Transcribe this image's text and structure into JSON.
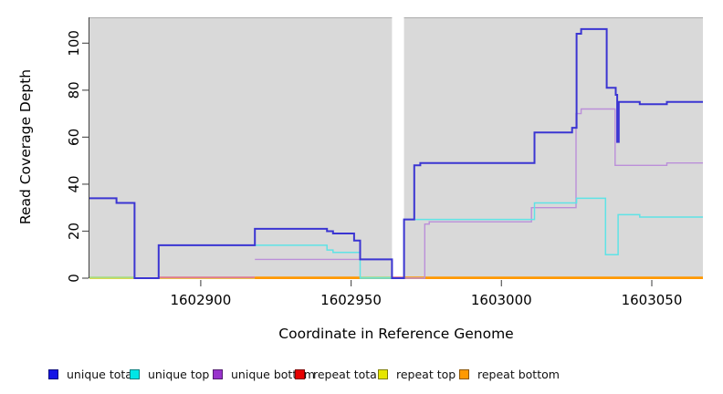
{
  "axes": {
    "x_label": "Coordinate in Reference Genome",
    "y_label": "Read Coverage Depth"
  },
  "legend": {
    "position": "bottom",
    "items": [
      {
        "label": "unique total",
        "color": "#1414e6"
      },
      {
        "label": "unique top",
        "color": "#00e6e6"
      },
      {
        "label": "unique bottom",
        "color": "#9933cc"
      },
      {
        "label": "repeat total",
        "color": "#e60000"
      },
      {
        "label": "repeat top",
        "color": "#e6e600"
      },
      {
        "label": "repeat bottom",
        "color": "#ff9900"
      }
    ]
  },
  "chart_data": {
    "type": "line",
    "step": true,
    "title": "",
    "xlabel": "Coordinate in Reference Genome",
    "ylabel": "Read Coverage Depth",
    "xlim": [
      1602863,
      1603067
    ],
    "ylim": [
      0,
      111
    ],
    "xticks": [
      "1602900",
      "1602950",
      "1603000",
      "1603050"
    ],
    "xtick_values": [
      1602900,
      1602950,
      1603000,
      1603050
    ],
    "yticks": [
      "0",
      "20",
      "40",
      "60",
      "80",
      "100"
    ],
    "ytick_values": [
      0,
      20,
      40,
      60,
      80,
      100
    ],
    "grid": false,
    "panel_color": "#d9d9d9",
    "panels": [
      {
        "from": 1602863,
        "to": 1602963.6
      },
      {
        "from": 1602967.6,
        "to": 1603067
      }
    ],
    "baseline_segments": [
      {
        "from": 1602863,
        "to": 1602878,
        "color": "#a8db82"
      },
      {
        "from": 1602886,
        "to": 1602918,
        "color": "#e07a8c"
      },
      {
        "from": 1602918,
        "to": 1602953,
        "color": "#ff9800"
      },
      {
        "from": 1602953,
        "to": 1602963.6,
        "color": "#a8db82"
      },
      {
        "from": 1602963.6,
        "to": 1602967.6,
        "color": "#e07a8c"
      },
      {
        "from": 1602967.6,
        "to": 1603067,
        "color": "#ff9800"
      }
    ],
    "series": [
      {
        "name": "repeat total",
        "color": "#e07a8c",
        "width": 1.6,
        "points": [
          [
            1602863,
            0
          ],
          [
            1603067,
            0
          ]
        ]
      },
      {
        "name": "repeat top",
        "color": "#e6e600",
        "width": 1.4,
        "points": [
          [
            1602863,
            0
          ],
          [
            1603067,
            0
          ]
        ]
      },
      {
        "name": "repeat bottom",
        "color": "#ff9800",
        "width": 2,
        "points": [
          [
            1602918,
            0
          ],
          [
            1603067,
            0
          ]
        ]
      },
      {
        "name": "unique bottom",
        "color": "#bb8fd9",
        "width": 1.4,
        "points": [
          [
            1602918,
            8
          ],
          [
            1602963.6,
            0
          ],
          [
            1602974.5,
            23
          ],
          [
            1602976,
            24
          ],
          [
            1603010,
            30
          ],
          [
            1603024.8,
            70
          ],
          [
            1603026.5,
            72
          ],
          [
            1603037.8,
            48
          ],
          [
            1603055,
            49
          ],
          [
            1603067,
            49
          ]
        ]
      },
      {
        "name": "unique top",
        "color": "#5fe3e6",
        "width": 1.5,
        "points": [
          [
            1602886,
            14
          ],
          [
            1602942,
            12
          ],
          [
            1602944,
            11
          ],
          [
            1602953,
            0
          ],
          [
            1602967.6,
            25
          ],
          [
            1603011,
            32
          ],
          [
            1603025,
            34
          ],
          [
            1603034.6,
            10
          ],
          [
            1603038.8,
            27
          ],
          [
            1603046,
            26
          ],
          [
            1603067,
            26
          ]
        ]
      },
      {
        "name": "unique total",
        "color": "#3b35d2",
        "width": 2,
        "points": [
          [
            1602863,
            34
          ],
          [
            1602872,
            32
          ],
          [
            1602878,
            0
          ],
          [
            1602886,
            14
          ],
          [
            1602918,
            21
          ],
          [
            1602942,
            20
          ],
          [
            1602944,
            19
          ],
          [
            1602951,
            16
          ],
          [
            1602953,
            8
          ],
          [
            1602963.6,
            0
          ],
          [
            1602967.6,
            25
          ],
          [
            1602971,
            48
          ],
          [
            1602973,
            49
          ],
          [
            1603011,
            62
          ],
          [
            1603023.5,
            64
          ],
          [
            1603025,
            104
          ],
          [
            1603026.5,
            106
          ],
          [
            1603035,
            81
          ],
          [
            1603038,
            78
          ],
          [
            1603038.5,
            58
          ],
          [
            1603039,
            75
          ],
          [
            1603046,
            74
          ],
          [
            1603055,
            75
          ],
          [
            1603067,
            75
          ]
        ]
      }
    ]
  }
}
